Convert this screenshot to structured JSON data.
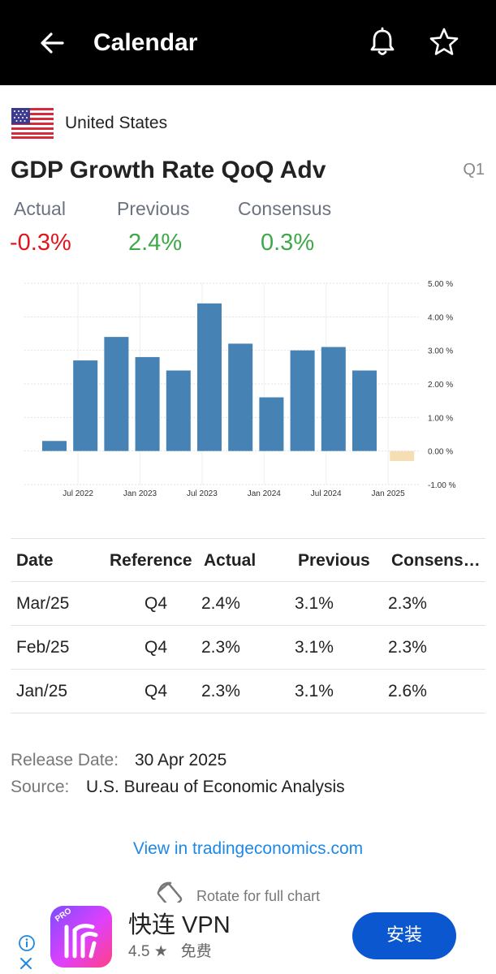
{
  "header": {
    "title": "Calendar"
  },
  "country": {
    "name": "United States"
  },
  "indicator": {
    "title": "GDP Growth Rate QoQ Adv",
    "period": "Q1"
  },
  "stats": {
    "actual_label": "Actual",
    "actual_value": "-0.3%",
    "previous_label": "Previous",
    "previous_value": "2.4%",
    "consensus_label": "Consensus",
    "consensus_value": "0.3%"
  },
  "colors": {
    "bar": "#4682b4",
    "bar_latest": "#f5deb3",
    "negative": "#e0161d",
    "positive": "#3fa84b",
    "link": "#1e88e5",
    "install": "#0b57d0"
  },
  "chart_data": {
    "type": "bar",
    "title": "",
    "xlabel": "",
    "ylabel": "",
    "categories": [
      "Q2 2022",
      "Q3 2022",
      "Q4 2022",
      "Q1 2023",
      "Q2 2023",
      "Q3 2023",
      "Q4 2023",
      "Q1 2024",
      "Q2 2024",
      "Q3 2024",
      "Q4 2024",
      "Q1 2025"
    ],
    "values": [
      0.3,
      2.7,
      3.4,
      2.8,
      2.4,
      4.4,
      3.2,
      1.6,
      3.0,
      3.1,
      2.4,
      -0.3
    ],
    "x_tick_labels": [
      "Jul 2022",
      "Jan 2023",
      "Jul 2023",
      "Jan 2024",
      "Jul 2024",
      "Jan 2025"
    ],
    "y_tick_labels": [
      "5.00 %",
      "4.00 %",
      "3.00 %",
      "2.00 %",
      "1.00 %",
      "0.00 %",
      "-1.00 %"
    ],
    "y_ticks": [
      5,
      4,
      3,
      2,
      1,
      0,
      -1
    ],
    "ylim": [
      -1,
      5
    ],
    "grid": true,
    "y_axis_position": "right"
  },
  "table": {
    "headers": [
      "Date",
      "Reference",
      "Actual",
      "Previous",
      "Consens…"
    ],
    "rows": [
      [
        "Mar/25",
        "Q4",
        "2.4%",
        "3.1%",
        "2.3%"
      ],
      [
        "Feb/25",
        "Q4",
        "2.3%",
        "3.1%",
        "2.3%"
      ],
      [
        "Jan/25",
        "Q4",
        "2.3%",
        "3.1%",
        "2.6%"
      ]
    ]
  },
  "meta": {
    "release_label": "Release Date:",
    "release_value": "30 Apr 2025",
    "source_label": "Source:",
    "source_value": "U.S. Bureau of Economic Analysis"
  },
  "link": {
    "label": "View in tradingeconomics.com"
  },
  "rotate_hint": "Rotate for full chart",
  "ad": {
    "app_name": "快连 VPN",
    "rating": "4.5 ★",
    "price": "免费",
    "install_label": "安装",
    "badge": "PRO"
  }
}
